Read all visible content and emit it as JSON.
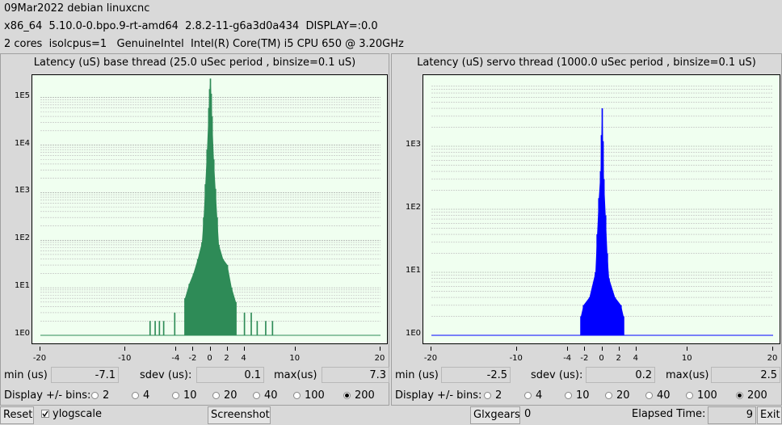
{
  "header": {
    "line1": "09Mar2022 debian linuxcnc",
    "line2": "x86_64  5.10.0-0.bpo.9-rt-amd64  2.8.2-11-g6a3d0a434  DISPLAY=:0.0",
    "line3": "2 cores  isolcpus=1   GenuineIntel  Intel(R) Core(TM) i5 CPU 650 @ 3.20GHz"
  },
  "base": {
    "title": "Latency (uS) base thread (25.0 uSec period , binsize=0.1 uS)",
    "min_label": "min (us)",
    "min": "-7.1",
    "sdev_label": "sdev (us):",
    "sdev": "0.1",
    "max_label": "max(us)",
    "max": "7.3",
    "bins_label": "Display +/- bins:",
    "bins": [
      "2",
      "4",
      "10",
      "20",
      "40",
      "100",
      "200"
    ],
    "selected_bin": "200",
    "y_ticks": [
      "1E5",
      "1E4",
      "1E3",
      "1E2",
      "1E1",
      "1E0"
    ],
    "x_ticks": [
      "-20",
      "-10",
      "-4",
      "-2",
      "0",
      "2",
      "4",
      "10",
      "20"
    ]
  },
  "servo": {
    "title": "Latency (uS) servo thread (1000.0 uSec period , binsize=0.1 uS)",
    "min_label": "min (us)",
    "min": "-2.5",
    "sdev_label": "sdev (us):",
    "sdev": "0.2",
    "max_label": "max(us)",
    "max": "2.5",
    "bins_label": "Display +/- bins:",
    "bins": [
      "2",
      "4",
      "10",
      "20",
      "40",
      "100",
      "200"
    ],
    "selected_bin": "200",
    "y_ticks": [
      "1E3",
      "1E2",
      "1E1",
      "1E0"
    ],
    "x_ticks": [
      "-20",
      "-10",
      "-4",
      "-2",
      "0",
      "2",
      "4",
      "10",
      "20"
    ]
  },
  "chart_data": [
    {
      "type": "bar",
      "title": "Latency (uS) base thread (25.0 uSec period , binsize=0.1 uS)",
      "yscale": "log",
      "color": "#2e8b57",
      "xlim": [
        -20,
        20
      ],
      "ylim_log10": [
        0,
        5.3
      ],
      "x": [
        -7.1,
        -6.5,
        -6.0,
        -5.5,
        -4.2,
        -3.0,
        -2.5,
        -2.0,
        -1.5,
        -1.0,
        -0.8,
        -0.6,
        -0.4,
        -0.2,
        -0.1,
        0.0,
        0.1,
        0.2,
        0.4,
        0.6,
        0.8,
        1.0,
        1.5,
        2.0,
        2.5,
        3.0,
        4.0,
        4.8,
        5.5,
        6.5,
        7.3
      ],
      "y": [
        2,
        2,
        2,
        2,
        3,
        6,
        12,
        20,
        40,
        90,
        300,
        1500,
        8000,
        60000,
        150000,
        250000,
        120000,
        40000,
        5000,
        1200,
        300,
        80,
        40,
        30,
        10,
        5,
        3,
        3,
        2,
        2,
        2
      ]
    },
    {
      "type": "bar",
      "title": "Latency (uS) servo thread (1000.0 uSec period , binsize=0.1 uS)",
      "yscale": "log",
      "color": "#0000ff",
      "xlim": [
        -20,
        20
      ],
      "ylim_log10": [
        0,
        4
      ],
      "x": [
        -2.5,
        -2.2,
        -1.5,
        -0.8,
        -0.6,
        -0.4,
        -0.2,
        -0.1,
        0.0,
        0.1,
        0.2,
        0.4,
        0.6,
        0.8,
        1.5,
        2.2,
        2.5
      ],
      "y": [
        2,
        3,
        4,
        10,
        40,
        150,
        400,
        1500,
        4000,
        1200,
        300,
        80,
        20,
        8,
        4,
        3,
        2
      ]
    }
  ],
  "footer": {
    "reset": "Reset",
    "ylogscale": "ylogscale",
    "screenshot": "Screenshot",
    "glxgears": "Glxgears",
    "glx_value": "0",
    "elapsed_label": "Elapsed Time:",
    "elapsed": "9",
    "exit": "Exit"
  }
}
